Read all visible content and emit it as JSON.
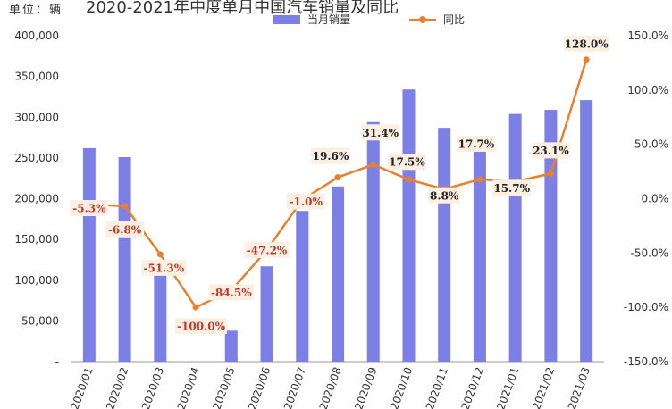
{
  "unit_label": "单位：辆",
  "title": "2020-2021年中度单月中国汽车销量及同比",
  "legend": {
    "bar_label": "当月销量",
    "line_label": "同比"
  },
  "colors": {
    "bar": "#7b7fe6",
    "line": "#e8802e",
    "label_bg": "#fdf0e2",
    "neg_text": "#c0392b",
    "pos_text": "#222222"
  },
  "chart_data": {
    "type": "bar",
    "categories": [
      "2020/01",
      "2020/02",
      "2020/03",
      "2020/04",
      "2020/05",
      "2020/06",
      "2020/07",
      "2020/08",
      "2020/09",
      "2020/10",
      "2020/11",
      "2020/12",
      "2021/01",
      "2021/02",
      "2021/03"
    ],
    "series": [
      {
        "name": "当月销量",
        "type": "bar",
        "axis": "left",
        "values": [
          262000,
          251000,
          120000,
          0,
          38000,
          117000,
          185000,
          215000,
          294000,
          334000,
          287000,
          277000,
          304000,
          309000,
          321000
        ]
      },
      {
        "name": "同比",
        "type": "line",
        "axis": "right",
        "values": [
          -5.3,
          -6.8,
          -51.3,
          -100.0,
          -84.5,
          -47.2,
          -1.0,
          19.6,
          31.4,
          17.5,
          8.8,
          17.7,
          15.7,
          23.1,
          128.0
        ],
        "labels": [
          "-5.3%",
          "-6.8%",
          "-51.3%",
          "-100.0%",
          "-84.5%",
          "-47.2%",
          "-1.0%",
          "19.6%",
          "31.4%",
          "17.5%",
          "8.8%",
          "17.7%",
          "15.7%",
          "23.1%",
          "128.0%"
        ]
      }
    ],
    "left_axis": {
      "ylim": [
        0,
        400000
      ],
      "ticks": [
        "-",
        "50,000",
        "100,000",
        "150,000",
        "200,000",
        "250,000",
        "300,000",
        "350,000",
        "400,000"
      ]
    },
    "right_axis": {
      "ylim": [
        -150,
        150
      ],
      "ticks": [
        "-150.0%",
        "-100.0%",
        "-50.0%",
        "0.0%",
        "50.0%",
        "100.0%",
        "150.0%"
      ]
    },
    "grid": false,
    "legend_position": "top"
  }
}
